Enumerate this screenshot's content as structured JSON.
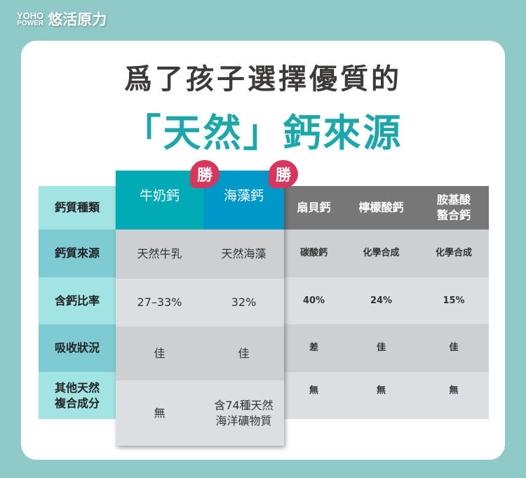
{
  "logo": {
    "en_top": "YOHO",
    "en_bottom": "POWER",
    "zh": "悠活原力"
  },
  "title": {
    "line1": "爲了孩子選擇優質的",
    "line2": "「天然」鈣來源"
  },
  "badge": "勝",
  "table": {
    "row_labels": [
      "鈣質種類",
      "鈣質來源",
      "含鈣比率",
      "吸收狀況",
      "其他天然\n複合成分"
    ],
    "columns": [
      {
        "name": "牛奶鈣",
        "values": [
          "天然牛乳",
          "27–33%",
          "佳",
          "無"
        ],
        "highlight": true
      },
      {
        "name": "海藻鈣",
        "values": [
          "天然海藻",
          "32%",
          "佳",
          "含74種天然\n海洋礦物質"
        ],
        "highlight": true
      },
      {
        "name": "扇貝鈣",
        "values": [
          "碳酸鈣",
          "40%",
          "差",
          "無"
        ]
      },
      {
        "name": "檸檬酸鈣",
        "values": [
          "化學合成",
          "24%",
          "佳",
          "無"
        ]
      },
      {
        "name": "胺基酸\n螯合鈣",
        "values": [
          "化學合成",
          "15%",
          "佳",
          "無"
        ]
      }
    ]
  },
  "colors": {
    "milk": "#00abb6",
    "seaweed": "#0097c9",
    "gray_header": "#777777",
    "badge": "#d9365e",
    "accent": "#1ca7ab"
  }
}
